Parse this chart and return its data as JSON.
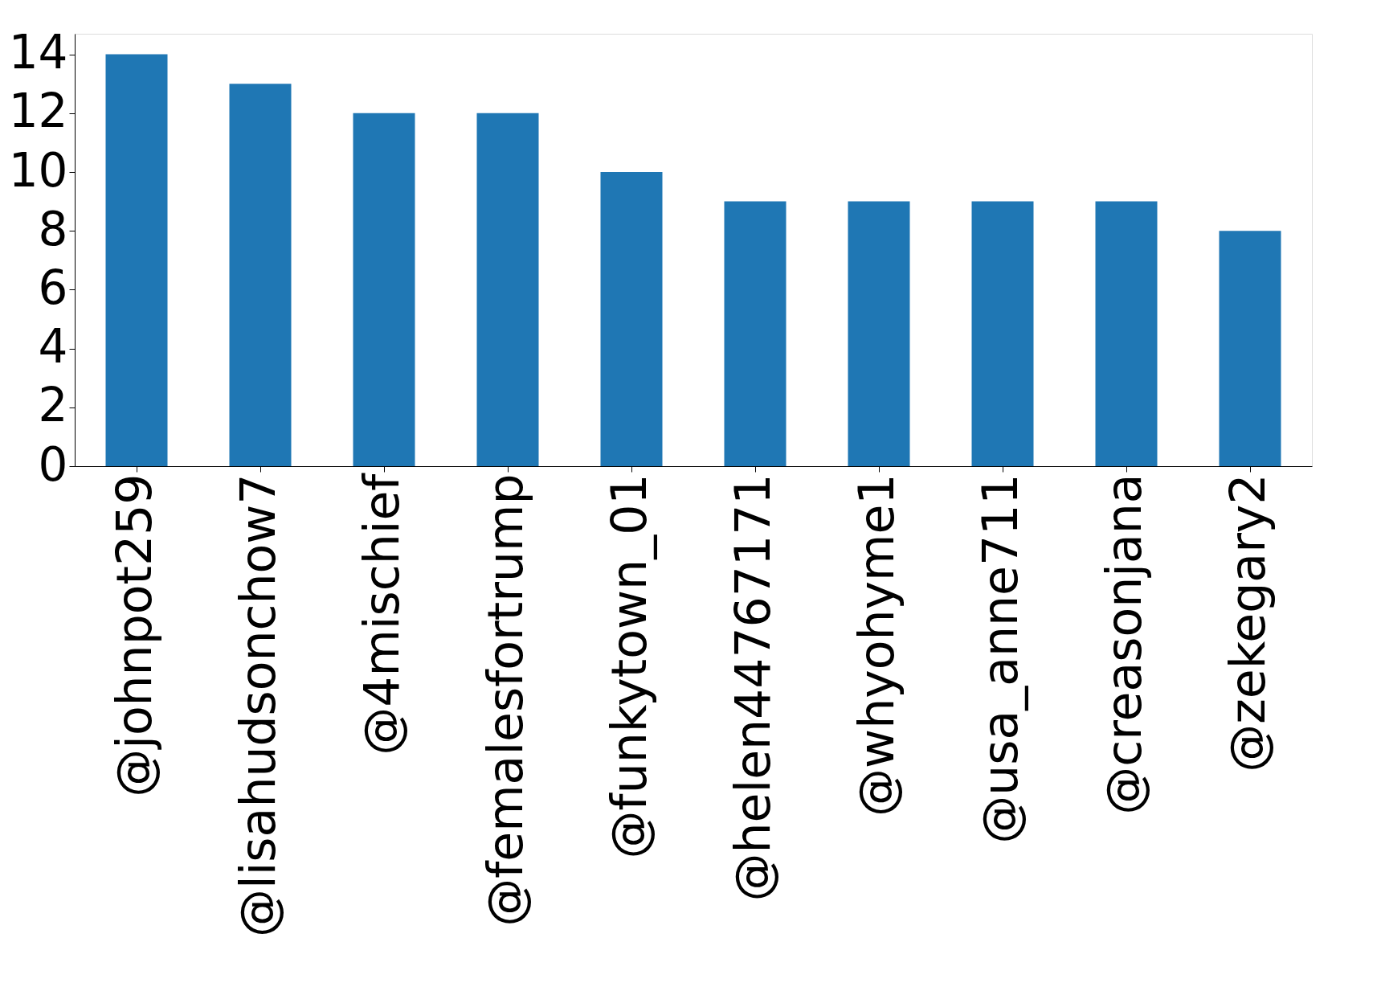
{
  "chart_data": {
    "type": "bar",
    "categories": [
      "@johnpot259",
      "@lisahudsonchow7",
      "@4mischief",
      "@femalesfortrump",
      "@funkytown_01",
      "@helen44767171",
      "@whyohyme1",
      "@usa_anne711",
      "@creasonjana",
      "@zekegary2"
    ],
    "values": [
      14,
      13,
      12,
      12,
      10,
      9,
      9,
      9,
      9,
      8
    ],
    "color": "#1f77b4",
    "ylim": [
      0,
      14.7
    ],
    "yticks": [
      0,
      2,
      4,
      6,
      8,
      10,
      12,
      14
    ],
    "grid": false
  }
}
